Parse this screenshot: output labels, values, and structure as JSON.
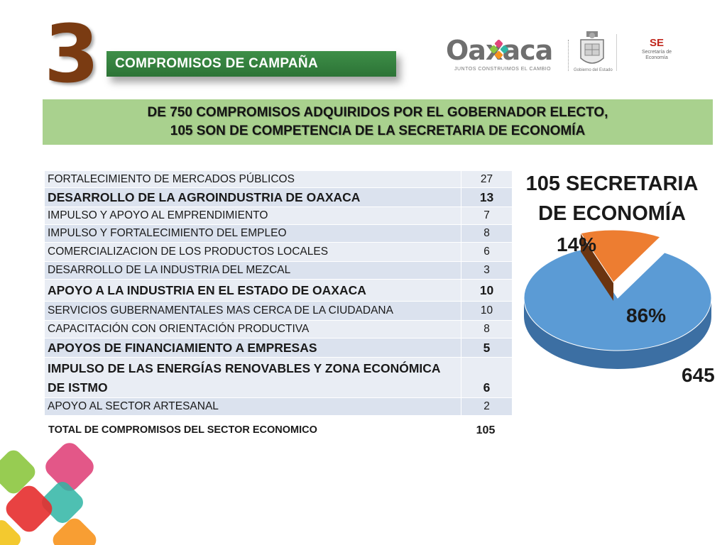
{
  "slide": {
    "number": "3",
    "banner": "COMPROMISOS DE CAMPAÑA",
    "headline_line1": "DE 750 COMPROMISOS ADQUIRIDOS POR EL GOBERNADOR ELECTO,",
    "headline_line2": "105 SON DE COMPETENCIA DE LA SECRETARIA DE ECONOMÍA"
  },
  "logos": {
    "oaxaca_word": "Oaxaca",
    "oaxaca_tagline": "JUNTOS CONSTRUIMOS EL CAMBIO",
    "government_caption": "Gobierno del Estado",
    "se_abbr": "SE",
    "se_line1": "Secretaría de",
    "se_line2": "Economía"
  },
  "table": {
    "rows": [
      {
        "name": "FORTALECIMIENTO DE MERCADOS PÚBLICOS",
        "value": "27",
        "bold": false
      },
      {
        "name": "DESARROLLO DE LA AGROINDUSTRIA DE OAXACA",
        "value": "13",
        "bold": true
      },
      {
        "name": "IMPULSO  Y APOYO AL EMPRENDIMIENTO",
        "value": "7",
        "bold": false
      },
      {
        "name": "IMPULSO Y FORTALECIMIENTO  DEL EMPLEO",
        "value": "8",
        "bold": false
      },
      {
        "name": "COMERCIALIZACION DE LOS PRODUCTOS LOCALES",
        "value": "6",
        "bold": false
      },
      {
        "name": "DESARROLLO DE LA INDUSTRIA DEL MEZCAL",
        "value": "3",
        "bold": false
      },
      {
        "name": "APOYO A LA INDUSTRIA EN EL ESTADO DE OAXACA",
        "value": "10",
        "bold": true
      },
      {
        "name": "SERVICIOS GUBERNAMENTALES MAS CERCA DE LA CIUDADANA",
        "value": "10",
        "bold": false
      },
      {
        "name": "CAPACITACIÓN CON ORIENTACIÓN PRODUCTIVA",
        "value": "8",
        "bold": false
      },
      {
        "name": "APOYOS DE  FINANCIAMIENTO A EMPRESAS",
        "value": "5",
        "bold": true
      },
      {
        "name": "IMPULSO DE LAS ENERGÍAS RENOVABLES Y ZONA ECONÓMICA DE ISTMO",
        "value": "6",
        "bold": true
      },
      {
        "name": "APOYO AL SECTOR ARTESANAL",
        "value": "2",
        "bold": false
      }
    ],
    "total_label": "TOTAL DE COMPROMISOS DEL SECTOR ECONOMICO",
    "total_value": "105"
  },
  "chart_data": {
    "type": "pie",
    "title_line1": "105 SECRETARIA",
    "title_line2": "DE ECONOMÍA",
    "slices": [
      {
        "label": "86%",
        "value": 645,
        "value_label": "645",
        "color": "#5b9bd5",
        "side_color": "#3c6fa3"
      },
      {
        "label": "14%",
        "value": 105,
        "value_label": "",
        "color": "#ed7d31",
        "side_color": "#6b3410",
        "exploded": true
      }
    ]
  },
  "colors": {
    "banner_green": "#2c7336",
    "headline_green": "#a9d18e",
    "number_brown": "#7a3b12"
  }
}
